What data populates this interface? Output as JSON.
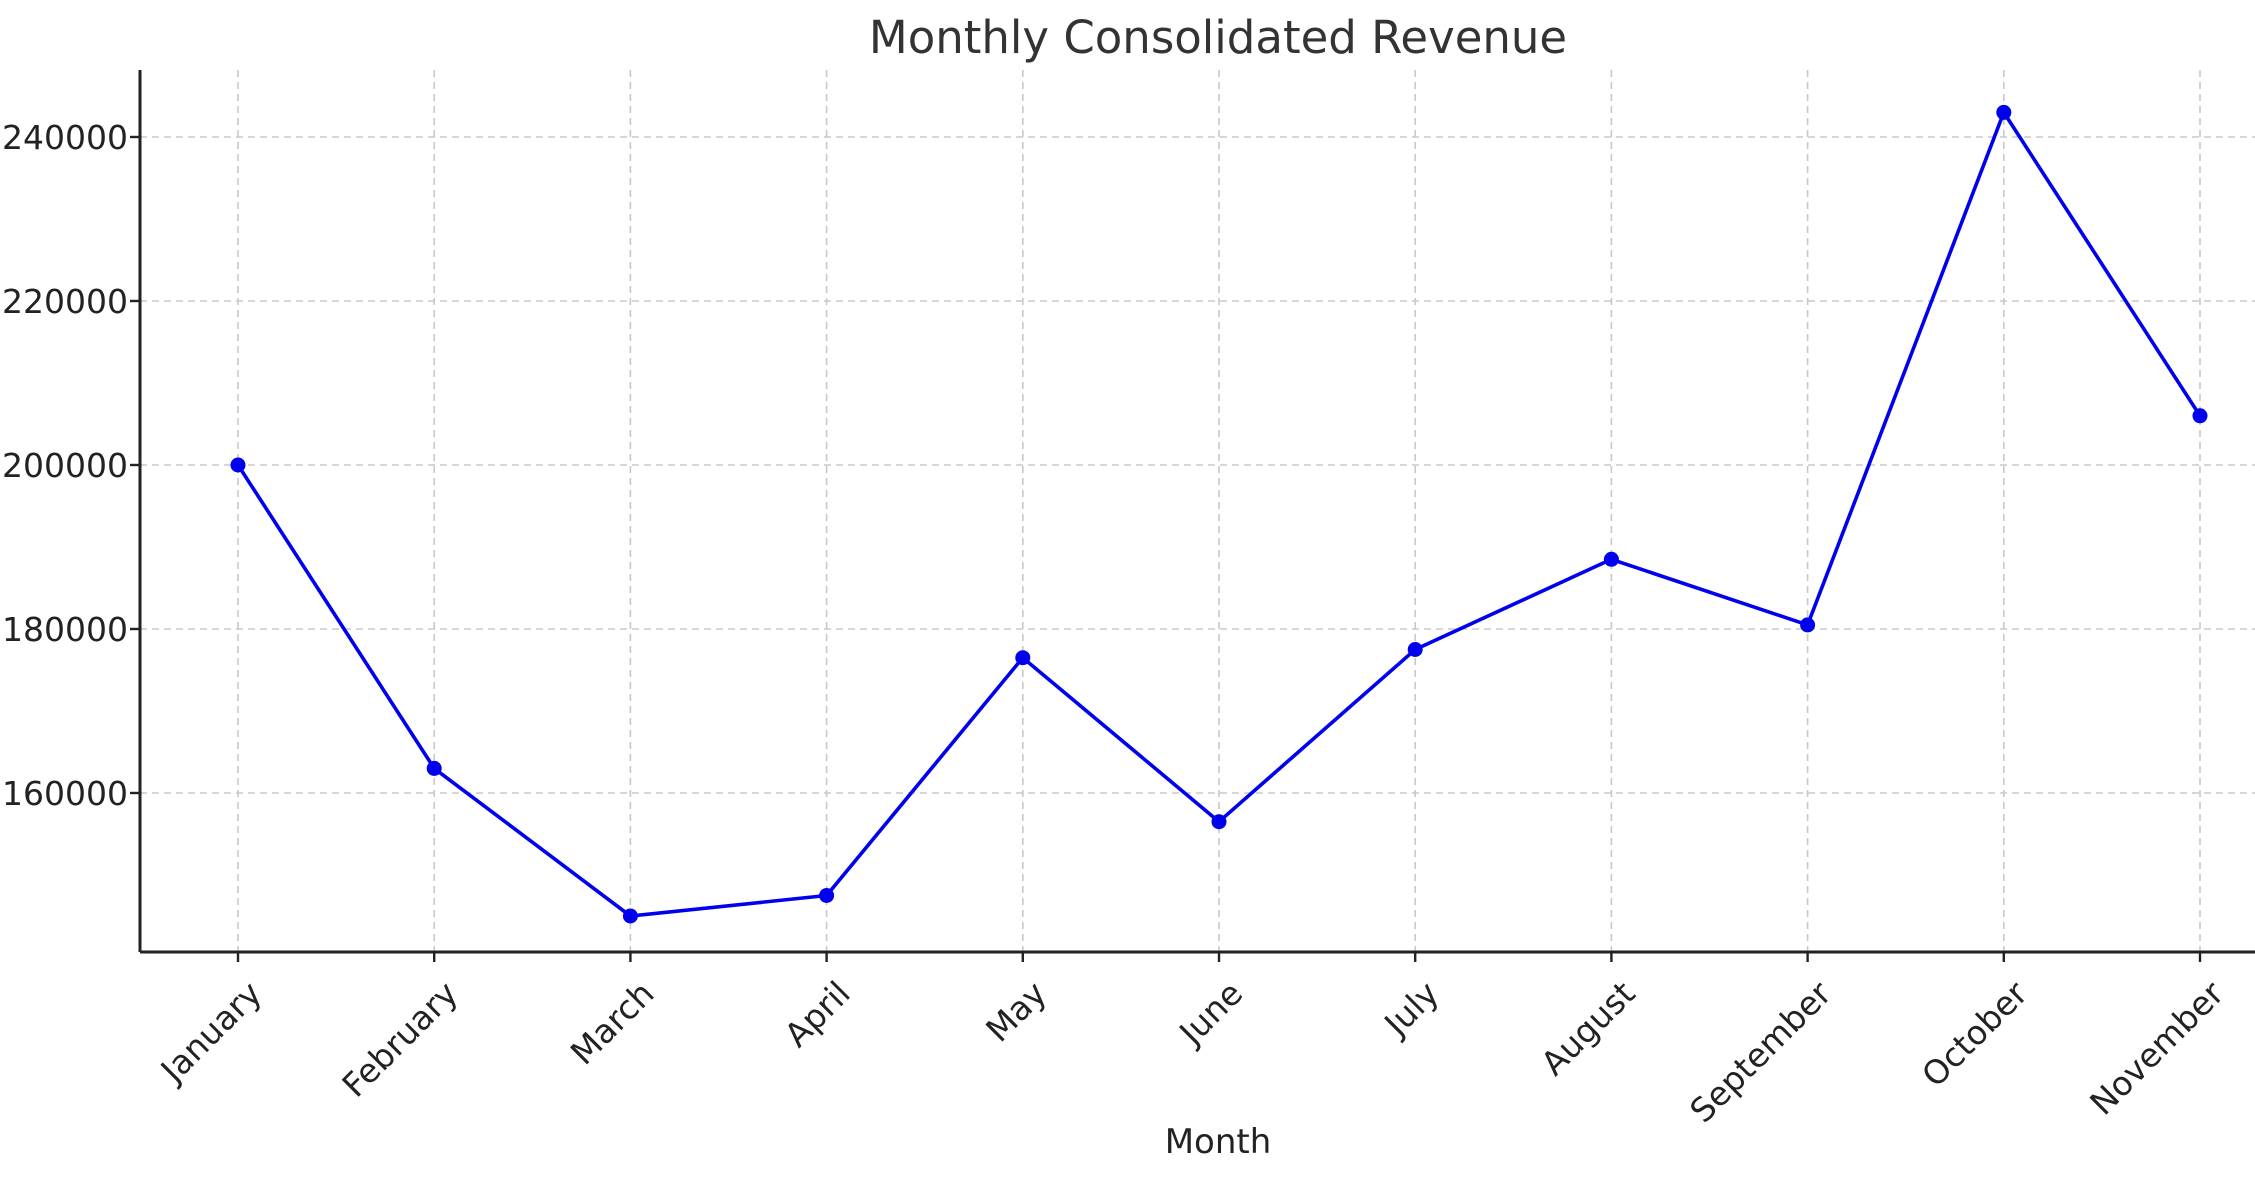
{
  "chart_data": {
    "type": "line",
    "title": "Monthly Consolidated Revenue",
    "xlabel": "Month",
    "ylabel": "",
    "categories": [
      "January",
      "February",
      "March",
      "April",
      "May",
      "June",
      "July",
      "August",
      "September",
      "October",
      "November"
    ],
    "series": [
      {
        "values": [
          200000,
          163000,
          145000,
          147500,
          176500,
          156500,
          177500,
          188500,
          180500,
          243000,
          206000
        ],
        "color": "#0000ee",
        "marker": "circle"
      }
    ],
    "ylim": [
      140000,
      249000
    ],
    "yticks": [
      160000,
      180000,
      200000,
      220000,
      240000
    ],
    "grid": true,
    "legend": "none"
  }
}
